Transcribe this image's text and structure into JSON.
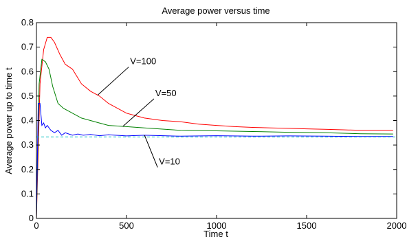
{
  "chart_data": {
    "type": "line",
    "title": "Average power versus time",
    "xlabel": "Time t",
    "ylabel": "Average power up to time t",
    "xlim": [
      0,
      2000
    ],
    "ylim": [
      0,
      0.8
    ],
    "xticks": [
      0,
      500,
      1000,
      1500,
      2000
    ],
    "xtick_labels": [
      "0",
      "500",
      "1000",
      "1500",
      "2000"
    ],
    "yticks": [
      0,
      0.1,
      0.2,
      0.3,
      0.4,
      0.5,
      0.6,
      0.7,
      0.8
    ],
    "ytick_labels": [
      "0",
      "0.1",
      "0.2",
      "0.3",
      "0.4",
      "0.5",
      "0.6",
      "0.7",
      "0.8"
    ],
    "grid": false,
    "series": [
      {
        "name": "V=100",
        "color": "#ff0000",
        "x": [
          0,
          20,
          40,
          60,
          80,
          100,
          130,
          160,
          200,
          250,
          300,
          350,
          400,
          450,
          500,
          550,
          600,
          700,
          800,
          900,
          1000,
          1100,
          1200,
          1300,
          1400,
          1500,
          1600,
          1700,
          1800,
          1900,
          1980
        ],
        "y": [
          0.0,
          0.55,
          0.69,
          0.74,
          0.74,
          0.72,
          0.67,
          0.63,
          0.61,
          0.55,
          0.52,
          0.5,
          0.47,
          0.45,
          0.43,
          0.42,
          0.41,
          0.4,
          0.395,
          0.385,
          0.38,
          0.375,
          0.372,
          0.37,
          0.368,
          0.366,
          0.364,
          0.362,
          0.36,
          0.36,
          0.36
        ]
      },
      {
        "name": "V=50",
        "color": "#008000",
        "x": [
          0,
          15,
          30,
          50,
          70,
          90,
          120,
          150,
          200,
          250,
          300,
          350,
          400,
          500,
          600,
          700,
          800,
          1000,
          1200,
          1400,
          1600,
          1800,
          1980
        ],
        "y": [
          0.0,
          0.55,
          0.65,
          0.64,
          0.61,
          0.54,
          0.47,
          0.45,
          0.43,
          0.41,
          0.4,
          0.39,
          0.38,
          0.375,
          0.37,
          0.365,
          0.36,
          0.358,
          0.355,
          0.352,
          0.35,
          0.346,
          0.345
        ]
      },
      {
        "name": "V=10",
        "color": "#0000ff",
        "x": [
          0,
          10,
          20,
          30,
          40,
          50,
          60,
          80,
          100,
          120,
          140,
          160,
          180,
          200,
          230,
          260,
          300,
          350,
          400,
          500,
          600,
          800,
          1000,
          1200,
          1400,
          1600,
          1800,
          1980
        ],
        "y": [
          0.0,
          0.47,
          0.47,
          0.38,
          0.39,
          0.37,
          0.38,
          0.36,
          0.35,
          0.36,
          0.34,
          0.35,
          0.345,
          0.34,
          0.345,
          0.34,
          0.343,
          0.338,
          0.342,
          0.337,
          0.34,
          0.336,
          0.338,
          0.336,
          0.337,
          0.336,
          0.335,
          0.335
        ]
      },
      {
        "name": "",
        "color": "#00bfbf",
        "dashed": true,
        "x": [
          0,
          2000
        ],
        "y": [
          0.333,
          0.333
        ]
      }
    ],
    "annotations": [
      {
        "text": "V=100",
        "series": 0,
        "at_x": 340,
        "label_x": 520,
        "label_y": 0.63
      },
      {
        "text": "V=50",
        "series": 1,
        "at_x": 480,
        "label_x": 660,
        "label_y": 0.5
      },
      {
        "text": "V=10",
        "series": 2,
        "at_x": 600,
        "label_x": 680,
        "label_y": 0.22
      }
    ]
  }
}
